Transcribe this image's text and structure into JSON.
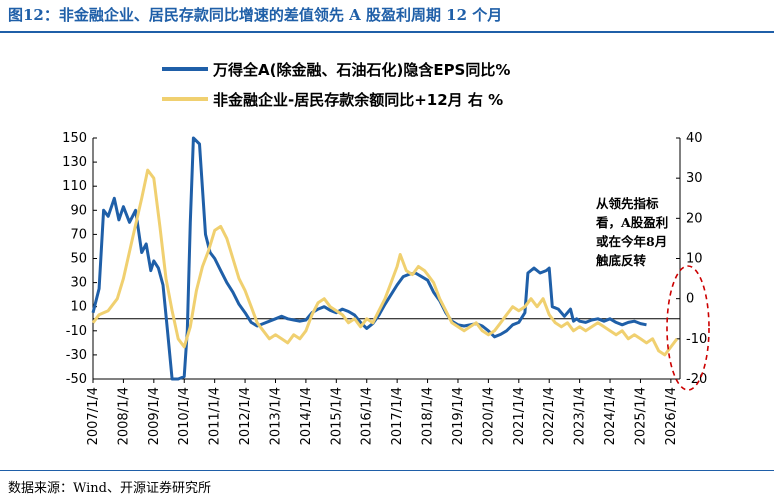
{
  "figure": {
    "title": "图12：非金融企业、居民存款同比增速的差值领先 A 股盈利周期 12 个月",
    "source": "数据来源：Wind、开源证券研究所"
  },
  "chart_data": {
    "type": "line",
    "legend": {
      "placement": "top-left"
    },
    "x_tick_labels": [
      "2007/1/4",
      "2008/1/4",
      "2009/1/4",
      "2010/1/4",
      "2011/1/4",
      "2012/1/4",
      "2013/1/4",
      "2014/1/4",
      "2015/1/4",
      "2016/1/4",
      "2017/1/4",
      "2018/1/4",
      "2019/1/4",
      "2020/1/4",
      "2021/1/4",
      "2022/1/4",
      "2023/1/4",
      "2024/1/4",
      "2025/1/4",
      "2026/1/4"
    ],
    "x_range": [
      2007.0,
      2026.3
    ],
    "y_left": {
      "range": [
        -50,
        150
      ],
      "ticks": [
        -50,
        -30,
        -10,
        10,
        30,
        50,
        70,
        90,
        110,
        130,
        150
      ]
    },
    "y_right": {
      "range": [
        -20,
        40
      ],
      "ticks": [
        -20,
        -10,
        0,
        10,
        20,
        30,
        40
      ]
    },
    "grid": false,
    "series": [
      {
        "name": "万得全A(除金融、石油石化)隐含EPS同比%",
        "axis": "left",
        "color": "#1f5fa8",
        "points": [
          [
            2007.0,
            5
          ],
          [
            2007.2,
            25
          ],
          [
            2007.35,
            90
          ],
          [
            2007.5,
            85
          ],
          [
            2007.7,
            100
          ],
          [
            2007.85,
            82
          ],
          [
            2008.0,
            93
          ],
          [
            2008.2,
            80
          ],
          [
            2008.4,
            90
          ],
          [
            2008.6,
            55
          ],
          [
            2008.75,
            62
          ],
          [
            2008.9,
            40
          ],
          [
            2009.0,
            48
          ],
          [
            2009.15,
            42
          ],
          [
            2009.3,
            28
          ],
          [
            2009.45,
            -10
          ],
          [
            2009.6,
            -50
          ],
          [
            2009.8,
            -50
          ],
          [
            2010.0,
            -48
          ],
          [
            2010.1,
            -10
          ],
          [
            2010.2,
            80
          ],
          [
            2010.3,
            150
          ],
          [
            2010.5,
            145
          ],
          [
            2010.7,
            70
          ],
          [
            2010.85,
            55
          ],
          [
            2011.0,
            50
          ],
          [
            2011.2,
            40
          ],
          [
            2011.4,
            30
          ],
          [
            2011.6,
            22
          ],
          [
            2011.8,
            12
          ],
          [
            2012.0,
            5
          ],
          [
            2012.2,
            -3
          ],
          [
            2012.4,
            -6
          ],
          [
            2012.6,
            -4
          ],
          [
            2012.8,
            -2
          ],
          [
            2013.0,
            0
          ],
          [
            2013.2,
            2
          ],
          [
            2013.4,
            0
          ],
          [
            2013.6,
            -1
          ],
          [
            2013.8,
            -2
          ],
          [
            2014.0,
            -1
          ],
          [
            2014.2,
            5
          ],
          [
            2014.4,
            8
          ],
          [
            2014.6,
            10
          ],
          [
            2014.8,
            7
          ],
          [
            2015.0,
            5
          ],
          [
            2015.2,
            8
          ],
          [
            2015.4,
            6
          ],
          [
            2015.6,
            3
          ],
          [
            2015.8,
            -3
          ],
          [
            2016.0,
            -8
          ],
          [
            2016.2,
            -4
          ],
          [
            2016.4,
            3
          ],
          [
            2016.6,
            12
          ],
          [
            2016.8,
            20
          ],
          [
            2017.0,
            28
          ],
          [
            2017.2,
            35
          ],
          [
            2017.4,
            37
          ],
          [
            2017.6,
            38
          ],
          [
            2017.8,
            35
          ],
          [
            2018.0,
            32
          ],
          [
            2018.2,
            22
          ],
          [
            2018.4,
            15
          ],
          [
            2018.6,
            5
          ],
          [
            2018.8,
            -2
          ],
          [
            2019.0,
            -5
          ],
          [
            2019.2,
            -6
          ],
          [
            2019.4,
            -5
          ],
          [
            2019.6,
            -4
          ],
          [
            2019.8,
            -6
          ],
          [
            2020.0,
            -10
          ],
          [
            2020.2,
            -15
          ],
          [
            2020.4,
            -13
          ],
          [
            2020.6,
            -10
          ],
          [
            2020.8,
            -5
          ],
          [
            2021.0,
            -3
          ],
          [
            2021.2,
            5
          ],
          [
            2021.3,
            38
          ],
          [
            2021.5,
            42
          ],
          [
            2021.7,
            38
          ],
          [
            2021.9,
            40
          ],
          [
            2022.0,
            42
          ],
          [
            2022.1,
            10
          ],
          [
            2022.3,
            8
          ],
          [
            2022.5,
            2
          ],
          [
            2022.7,
            8
          ],
          [
            2022.8,
            -2
          ],
          [
            2022.9,
            0
          ],
          [
            2023.0,
            -2
          ],
          [
            2023.2,
            -3
          ],
          [
            2023.4,
            -1
          ],
          [
            2023.6,
            0
          ],
          [
            2023.8,
            -2
          ],
          [
            2024.0,
            0
          ],
          [
            2024.2,
            -3
          ],
          [
            2024.4,
            -5
          ],
          [
            2024.6,
            -3
          ],
          [
            2024.8,
            -2
          ],
          [
            2025.0,
            -4
          ],
          [
            2025.2,
            -5
          ]
        ]
      },
      {
        "name": "非金融企业-居民存款余额同比+12月 右 %",
        "axis": "right",
        "color": "#f0d070",
        "points": [
          [
            2007.0,
            -6
          ],
          [
            2007.2,
            -4
          ],
          [
            2007.5,
            -3
          ],
          [
            2007.8,
            0
          ],
          [
            2008.0,
            5
          ],
          [
            2008.3,
            15
          ],
          [
            2008.6,
            25
          ],
          [
            2008.8,
            32
          ],
          [
            2009.0,
            30
          ],
          [
            2009.2,
            18
          ],
          [
            2009.4,
            5
          ],
          [
            2009.6,
            -3
          ],
          [
            2009.8,
            -10
          ],
          [
            2010.0,
            -12
          ],
          [
            2010.2,
            -7
          ],
          [
            2010.4,
            2
          ],
          [
            2010.6,
            8
          ],
          [
            2010.8,
            12
          ],
          [
            2011.0,
            17
          ],
          [
            2011.2,
            18
          ],
          [
            2011.4,
            15
          ],
          [
            2011.6,
            10
          ],
          [
            2011.8,
            5
          ],
          [
            2012.0,
            2
          ],
          [
            2012.2,
            -2
          ],
          [
            2012.4,
            -6
          ],
          [
            2012.6,
            -8
          ],
          [
            2012.8,
            -10
          ],
          [
            2013.0,
            -9
          ],
          [
            2013.2,
            -10
          ],
          [
            2013.4,
            -11
          ],
          [
            2013.6,
            -9
          ],
          [
            2013.8,
            -10
          ],
          [
            2014.0,
            -8
          ],
          [
            2014.2,
            -4
          ],
          [
            2014.4,
            -1
          ],
          [
            2014.6,
            0
          ],
          [
            2014.8,
            -2
          ],
          [
            2015.0,
            -3
          ],
          [
            2015.2,
            -4
          ],
          [
            2015.4,
            -6
          ],
          [
            2015.6,
            -5
          ],
          [
            2015.8,
            -7
          ],
          [
            2016.0,
            -5
          ],
          [
            2016.2,
            -6
          ],
          [
            2016.4,
            -3
          ],
          [
            2016.6,
            0
          ],
          [
            2016.8,
            4
          ],
          [
            2017.0,
            8
          ],
          [
            2017.1,
            11
          ],
          [
            2017.3,
            7
          ],
          [
            2017.5,
            6
          ],
          [
            2017.7,
            8
          ],
          [
            2017.9,
            7
          ],
          [
            2018.0,
            6
          ],
          [
            2018.2,
            4
          ],
          [
            2018.4,
            0
          ],
          [
            2018.6,
            -3
          ],
          [
            2018.8,
            -6
          ],
          [
            2019.0,
            -7
          ],
          [
            2019.2,
            -8
          ],
          [
            2019.4,
            -7
          ],
          [
            2019.6,
            -6
          ],
          [
            2019.8,
            -8
          ],
          [
            2020.0,
            -9
          ],
          [
            2020.2,
            -8
          ],
          [
            2020.4,
            -6
          ],
          [
            2020.6,
            -4
          ],
          [
            2020.8,
            -2
          ],
          [
            2021.0,
            -3
          ],
          [
            2021.2,
            -2
          ],
          [
            2021.4,
            0
          ],
          [
            2021.6,
            -2
          ],
          [
            2021.8,
            0
          ],
          [
            2022.0,
            -4
          ],
          [
            2022.2,
            -6
          ],
          [
            2022.4,
            -7
          ],
          [
            2022.6,
            -6
          ],
          [
            2022.8,
            -8
          ],
          [
            2023.0,
            -7
          ],
          [
            2023.2,
            -8
          ],
          [
            2023.4,
            -7
          ],
          [
            2023.6,
            -6
          ],
          [
            2023.8,
            -7
          ],
          [
            2024.0,
            -8
          ],
          [
            2024.2,
            -9
          ],
          [
            2024.4,
            -8
          ],
          [
            2024.6,
            -10
          ],
          [
            2024.8,
            -9
          ],
          [
            2025.0,
            -10
          ],
          [
            2025.2,
            -11
          ],
          [
            2025.4,
            -10
          ],
          [
            2025.6,
            -13
          ],
          [
            2025.8,
            -14
          ],
          [
            2026.0,
            -12
          ],
          [
            2026.2,
            -10
          ]
        ]
      }
    ],
    "annotation": {
      "lines": [
        "从领先指标",
        "看，A股盈利",
        "或在今年8月",
        "触底反转"
      ]
    }
  }
}
